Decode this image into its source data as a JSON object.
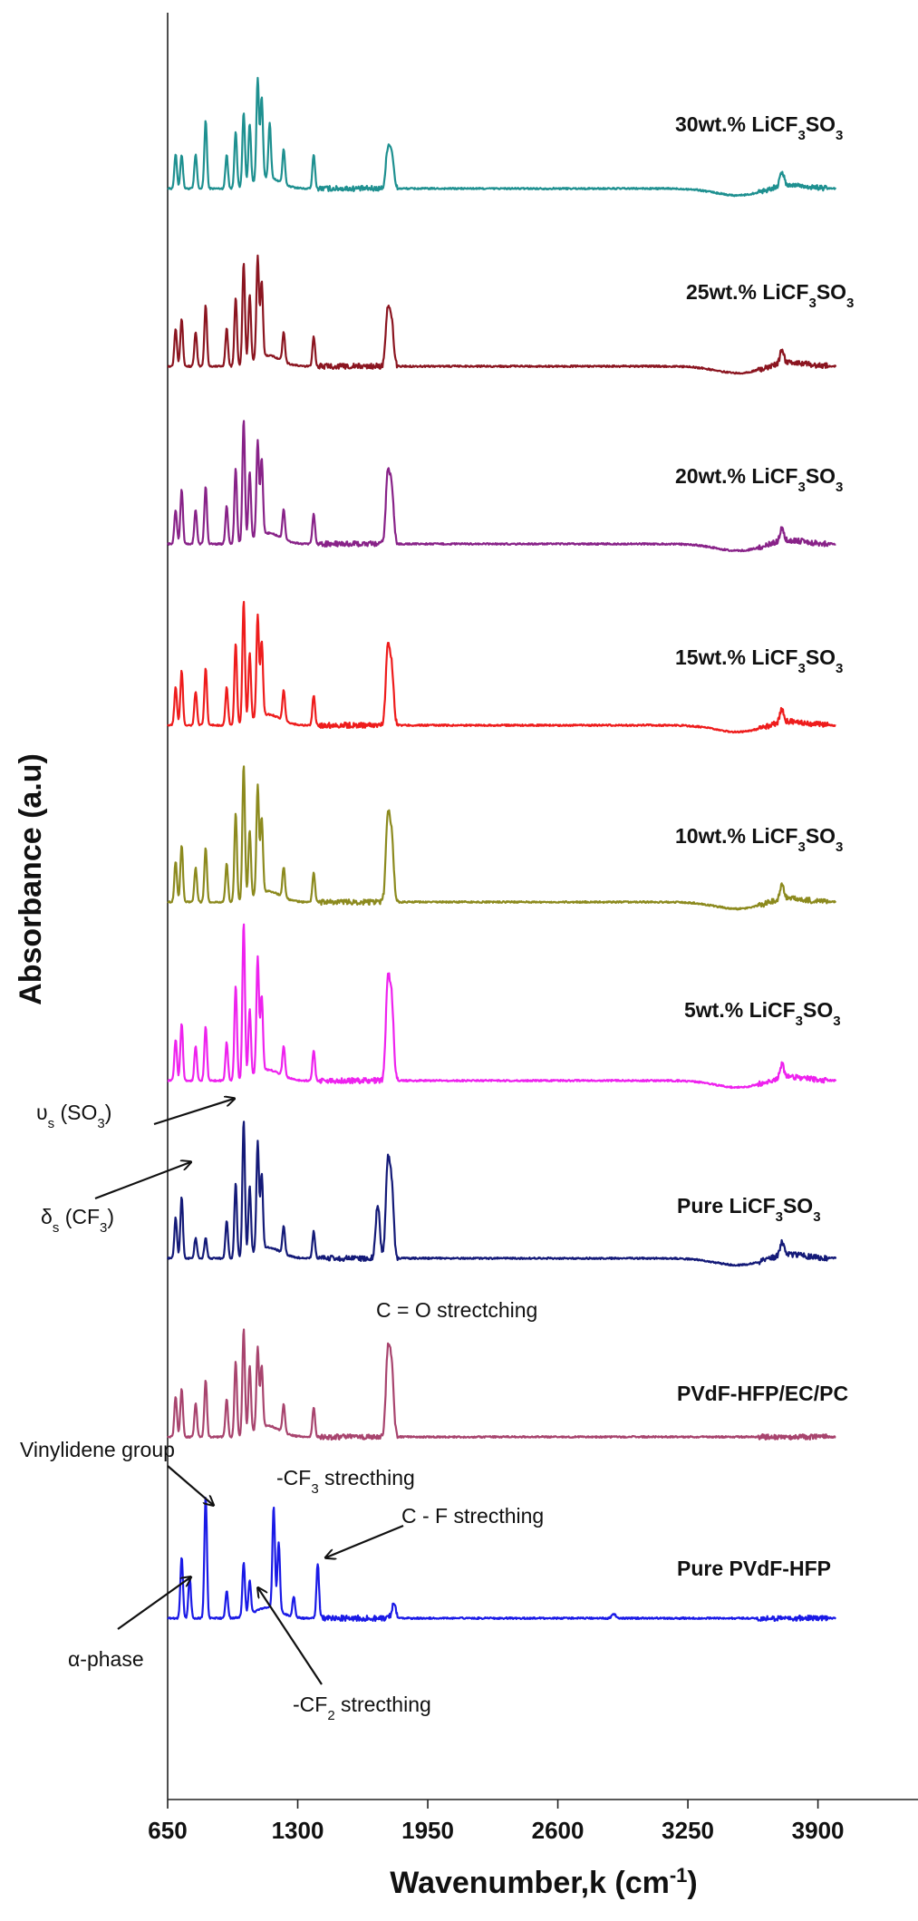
{
  "chart_data": {
    "type": "line",
    "title": "",
    "xlabel_main": "Wavenumber,k (cm",
    "xlabel_sup": "-1",
    "xlabel_end": ")",
    "ylabel": "Absorbance (a.u)",
    "xlim": [
      650,
      4400
    ],
    "x_ticks": [
      650,
      1300,
      1950,
      2600,
      3250,
      3900
    ],
    "x_tick_labels": [
      "650",
      "1300",
      "1950",
      "2600",
      "3250",
      "3900"
    ],
    "y_ticks_shown": false,
    "grid": false,
    "legend": "none",
    "x_range_plotted": [
      650,
      3990
    ],
    "series": [
      {
        "name": "30wt.% LiCF3SO3",
        "label_parts": [
          "30wt.% LiCF",
          "3",
          "SO",
          "3"
        ],
        "color": "#1e9090",
        "peaks": [
          [
            690,
            0.25
          ],
          [
            720,
            0.25
          ],
          [
            790,
            0.25
          ],
          [
            840,
            0.5
          ],
          [
            945,
            0.25
          ],
          [
            990,
            0.42
          ],
          [
            1030,
            0.55
          ],
          [
            1060,
            0.45
          ],
          [
            1100,
            0.75
          ],
          [
            1120,
            0.6
          ],
          [
            1160,
            0.4
          ],
          [
            1230,
            0.25
          ],
          [
            1380,
            0.25
          ],
          [
            1750,
            0.28
          ],
          [
            1770,
            0.25
          ],
          [
            3720,
            0.1
          ]
        ]
      },
      {
        "name": "25wt.% LiCF3SO3",
        "label_parts": [
          "25wt.% LiCF",
          "3",
          "SO",
          "3"
        ],
        "color": "#8b1520",
        "peaks": [
          [
            690,
            0.28
          ],
          [
            720,
            0.35
          ],
          [
            790,
            0.25
          ],
          [
            840,
            0.45
          ],
          [
            945,
            0.28
          ],
          [
            990,
            0.5
          ],
          [
            1030,
            0.75
          ],
          [
            1060,
            0.5
          ],
          [
            1100,
            0.75
          ],
          [
            1120,
            0.55
          ],
          [
            1230,
            0.22
          ],
          [
            1380,
            0.22
          ],
          [
            1750,
            0.4
          ],
          [
            1770,
            0.3
          ],
          [
            3720,
            0.1
          ]
        ]
      },
      {
        "name": "20wt.% LiCF3SO3",
        "label_parts": [
          "20wt.% LiCF",
          "3",
          "SO",
          "3"
        ],
        "color": "#882288",
        "peaks": [
          [
            690,
            0.25
          ],
          [
            720,
            0.4
          ],
          [
            790,
            0.25
          ],
          [
            840,
            0.42
          ],
          [
            945,
            0.28
          ],
          [
            990,
            0.55
          ],
          [
            1030,
            0.9
          ],
          [
            1060,
            0.5
          ],
          [
            1100,
            0.7
          ],
          [
            1120,
            0.55
          ],
          [
            1230,
            0.22
          ],
          [
            1380,
            0.22
          ],
          [
            1750,
            0.5
          ],
          [
            1770,
            0.38
          ],
          [
            3720,
            0.1
          ]
        ]
      },
      {
        "name": "15wt.% LiCF3SO3",
        "label_parts": [
          "15wt.% LiCF",
          "3",
          "SO",
          "3"
        ],
        "color": "#ee1c1c",
        "peaks": [
          [
            690,
            0.28
          ],
          [
            720,
            0.4
          ],
          [
            790,
            0.25
          ],
          [
            840,
            0.42
          ],
          [
            945,
            0.28
          ],
          [
            990,
            0.6
          ],
          [
            1030,
            0.9
          ],
          [
            1060,
            0.5
          ],
          [
            1100,
            0.75
          ],
          [
            1120,
            0.55
          ],
          [
            1230,
            0.22
          ],
          [
            1380,
            0.22
          ],
          [
            1750,
            0.55
          ],
          [
            1770,
            0.4
          ],
          [
            3720,
            0.1
          ]
        ]
      },
      {
        "name": "10wt.% LiCF3SO3",
        "label_parts": [
          "10wt.% LiCF",
          "3",
          "SO",
          "3"
        ],
        "color": "#8c8a1e",
        "peaks": [
          [
            690,
            0.3
          ],
          [
            720,
            0.42
          ],
          [
            790,
            0.25
          ],
          [
            840,
            0.4
          ],
          [
            945,
            0.28
          ],
          [
            990,
            0.65
          ],
          [
            1030,
            1.0
          ],
          [
            1060,
            0.5
          ],
          [
            1100,
            0.8
          ],
          [
            1120,
            0.55
          ],
          [
            1230,
            0.22
          ],
          [
            1380,
            0.22
          ],
          [
            1750,
            0.6
          ],
          [
            1770,
            0.45
          ],
          [
            3720,
            0.1
          ]
        ]
      },
      {
        "name": "5wt.% LiCF3SO3",
        "label_parts": [
          "5wt.% LiCF",
          "3",
          "SO",
          "3"
        ],
        "color": "#ee22ee",
        "peaks": [
          [
            690,
            0.3
          ],
          [
            720,
            0.42
          ],
          [
            790,
            0.25
          ],
          [
            840,
            0.4
          ],
          [
            945,
            0.28
          ],
          [
            990,
            0.7
          ],
          [
            1030,
            1.15
          ],
          [
            1060,
            0.5
          ],
          [
            1100,
            0.85
          ],
          [
            1120,
            0.55
          ],
          [
            1230,
            0.22
          ],
          [
            1380,
            0.22
          ],
          [
            1750,
            0.7
          ],
          [
            1770,
            0.55
          ],
          [
            3720,
            0.1
          ]
        ]
      },
      {
        "name": "Pure LiCF3SO3",
        "label_parts": [
          "Pure LiCF",
          "3",
          "SO",
          "3"
        ],
        "color": "#141a78",
        "peaks": [
          [
            690,
            0.3
          ],
          [
            720,
            0.45
          ],
          [
            790,
            0.15
          ],
          [
            840,
            0.15
          ],
          [
            945,
            0.28
          ],
          [
            990,
            0.55
          ],
          [
            1030,
            1.0
          ],
          [
            1060,
            0.5
          ],
          [
            1100,
            0.8
          ],
          [
            1120,
            0.55
          ],
          [
            1230,
            0.2
          ],
          [
            1380,
            0.2
          ],
          [
            1700,
            0.4
          ],
          [
            1750,
            0.68
          ],
          [
            1770,
            0.5
          ],
          [
            3720,
            0.1
          ]
        ]
      },
      {
        "name": "PVdF-HFP/EC/PC",
        "label_parts": [
          "PVdF-HFP/EC/PC",
          "",
          "",
          ""
        ],
        "color": "#a8446e",
        "peaks": [
          [
            690,
            0.3
          ],
          [
            720,
            0.35
          ],
          [
            790,
            0.25
          ],
          [
            840,
            0.42
          ],
          [
            945,
            0.28
          ],
          [
            990,
            0.55
          ],
          [
            1030,
            0.78
          ],
          [
            1060,
            0.5
          ],
          [
            1100,
            0.6
          ],
          [
            1120,
            0.45
          ],
          [
            1230,
            0.2
          ],
          [
            1380,
            0.22
          ],
          [
            1750,
            0.6
          ],
          [
            1770,
            0.5
          ]
        ]
      },
      {
        "name": "Pure PVdF-HFP",
        "label_parts": [
          "Pure PVdF-HFP",
          "",
          "",
          ""
        ],
        "color": "#1a1ae6",
        "peaks": [
          [
            720,
            0.45
          ],
          [
            760,
            0.3
          ],
          [
            840,
            0.9
          ],
          [
            945,
            0.2
          ],
          [
            1030,
            0.4
          ],
          [
            1060,
            0.25
          ],
          [
            1180,
            0.75
          ],
          [
            1205,
            0.5
          ],
          [
            1280,
            0.15
          ],
          [
            1400,
            0.4
          ],
          [
            1780,
            0.1
          ],
          [
            2880,
            0.03
          ]
        ]
      }
    ],
    "annotations": [
      {
        "text": "υ",
        "sub": "s",
        "after": " (SO",
        "sub2": "3",
        "end": ")"
      },
      {
        "text": "δ",
        "sub": "s",
        "after": " (CF",
        "sub2": "3",
        "end": ")"
      },
      {
        "text": "C = O strectching",
        "sub": "",
        "after": "",
        "sub2": "",
        "end": ""
      },
      {
        "text": "Vinylidene group",
        "sub": "",
        "after": "",
        "sub2": "",
        "end": ""
      },
      {
        "text": "-CF",
        "sub": "3",
        "after": " strecthing",
        "sub2": "",
        "end": ""
      },
      {
        "text": "C - F strecthing",
        "sub": "",
        "after": "",
        "sub2": "",
        "end": ""
      },
      {
        "text": "α-phase",
        "sub": "",
        "after": "",
        "sub2": "",
        "end": ""
      },
      {
        "text": "-CF",
        "sub": "2",
        "after": " strecthing",
        "sub2": "",
        "end": ""
      }
    ]
  }
}
